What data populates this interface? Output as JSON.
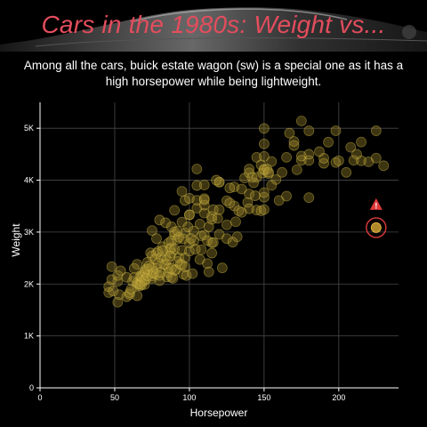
{
  "colors": {
    "background": "#000000",
    "title": "#e34d5d",
    "point_fill": "#a08a2e",
    "point_stroke": "#d8c24a",
    "highlight": "#e03a3a",
    "grid": "#4a4a4a"
  },
  "chart_data": {
    "type": "scatter",
    "title": "Cars in the 1980s: Weight vs...",
    "subtitle": "Among all the cars, buick estate wagon (sw) is a special one as it has a high horsepower while being lightweight.",
    "xlabel": "Horsepower",
    "ylabel": "Weight",
    "xlim": [
      0,
      240
    ],
    "ylim": [
      0,
      5500
    ],
    "x_ticks": [
      0,
      50,
      100,
      150,
      200
    ],
    "x_tick_labels": [
      "0",
      "50",
      "100",
      "150",
      "200"
    ],
    "y_ticks": [
      0,
      1000,
      2000,
      3000,
      4000,
      5000
    ],
    "y_tick_labels": [
      "0",
      "1K",
      "2K",
      "3K",
      "4K",
      "5K"
    ],
    "grid": true,
    "highlight": {
      "name": "buick estate wagon (sw)",
      "x": 225,
      "y": 3086,
      "icon": "warning-triangle-icon"
    },
    "points": [
      [
        46,
        1835
      ],
      [
        46,
        1950
      ],
      [
        48,
        2085
      ],
      [
        48,
        2335
      ],
      [
        49,
        1867
      ],
      [
        52,
        1649
      ],
      [
        52,
        2050
      ],
      [
        52,
        2164
      ],
      [
        53,
        1795
      ],
      [
        54,
        2254
      ],
      [
        58,
        1755
      ],
      [
        58,
        2130
      ],
      [
        60,
        1800
      ],
      [
        60,
        1834
      ],
      [
        61,
        1900
      ],
      [
        62,
        2050
      ],
      [
        63,
        2125
      ],
      [
        65,
        1773
      ],
      [
        65,
        1975
      ],
      [
        65,
        2019
      ],
      [
        65,
        2380
      ],
      [
        66,
        2000
      ],
      [
        67,
        1965
      ],
      [
        67,
        1995
      ],
      [
        67,
        2145
      ],
      [
        68,
        1985
      ],
      [
        68,
        2045
      ],
      [
        68,
        2135
      ],
      [
        68,
        2155
      ],
      [
        69,
        2189
      ],
      [
        70,
        1990
      ],
      [
        70,
        2070
      ],
      [
        70,
        2223
      ],
      [
        70,
        2245
      ],
      [
        71,
        2100
      ],
      [
        71,
        2288
      ],
      [
        72,
        2158
      ],
      [
        72,
        2290
      ],
      [
        74,
        2600
      ],
      [
        75,
        2108
      ],
      [
        75,
        2155
      ],
      [
        75,
        2320
      ],
      [
        75,
        2542
      ],
      [
        75,
        3030
      ],
      [
        76,
        2202
      ],
      [
        76,
        2226
      ],
      [
        78,
        2190
      ],
      [
        78,
        2300
      ],
      [
        78,
        2592
      ],
      [
        78,
        2875
      ],
      [
        79,
        2625
      ],
      [
        80,
        2065
      ],
      [
        80,
        2164
      ],
      [
        80,
        3233
      ],
      [
        81,
        2220
      ],
      [
        81,
        2511
      ],
      [
        82,
        2720
      ],
      [
        83,
        2370
      ],
      [
        84,
        2385
      ],
      [
        84,
        2525
      ],
      [
        85,
        2135
      ],
      [
        85,
        2464
      ],
      [
        86,
        2220
      ],
      [
        86,
        2790
      ],
      [
        86,
        2310
      ],
      [
        87,
        2672
      ],
      [
        88,
        2130
      ],
      [
        88,
        2600
      ],
      [
        88,
        2700
      ],
      [
        88,
        3102
      ],
      [
        88,
        2833
      ],
      [
        89,
        2110
      ],
      [
        90,
        2265
      ],
      [
        90,
        2670
      ],
      [
        90,
        2950
      ],
      [
        90,
        3000
      ],
      [
        90,
        3420
      ],
      [
        91,
        2279
      ],
      [
        92,
        2434
      ],
      [
        92,
        2865
      ],
      [
        93,
        2506
      ],
      [
        94,
        2379
      ],
      [
        95,
        2372
      ],
      [
        95,
        2648
      ],
      [
        95,
        3193
      ],
      [
        95,
        3785
      ],
      [
        96,
        2189
      ],
      [
        97,
        2330
      ],
      [
        97,
        2506
      ],
      [
        97,
        2984
      ],
      [
        97,
        3610
      ],
      [
        98,
        2164
      ],
      [
        100,
        2634
      ],
      [
        100,
        2789
      ],
      [
        100,
        3329
      ],
      [
        100,
        3336
      ],
      [
        100,
        3651
      ],
      [
        102,
        2200
      ],
      [
        103,
        2830
      ],
      [
        105,
        3459
      ],
      [
        105,
        3613
      ],
      [
        105,
        3897
      ],
      [
        105,
        4215
      ],
      [
        107,
        2472
      ],
      [
        107,
        3155
      ],
      [
        108,
        2930
      ],
      [
        110,
        2945
      ],
      [
        110,
        3365
      ],
      [
        110,
        3520
      ],
      [
        110,
        3620
      ],
      [
        110,
        3645
      ],
      [
        110,
        3907
      ],
      [
        112,
        2395
      ],
      [
        112,
        2835
      ],
      [
        113,
        2234
      ],
      [
        115,
        2595
      ],
      [
        115,
        2795
      ],
      [
        115,
        3245
      ],
      [
        115,
        3302
      ],
      [
        116,
        2800
      ],
      [
        116,
        3432
      ],
      [
        120,
        2957
      ],
      [
        120,
        3430
      ],
      [
        120,
        3962
      ],
      [
        120,
        3962
      ],
      [
        122,
        2310
      ],
      [
        125,
        2875
      ],
      [
        125,
        3140
      ],
      [
        125,
        3605
      ],
      [
        129,
        2807
      ],
      [
        130,
        3504
      ],
      [
        130,
        3870
      ],
      [
        132,
        2910
      ],
      [
        133,
        3410
      ],
      [
        135,
        3830
      ],
      [
        137,
        4042
      ],
      [
        139,
        3570
      ],
      [
        140,
        3449
      ],
      [
        140,
        3735
      ],
      [
        140,
        4141
      ],
      [
        140,
        4215
      ],
      [
        142,
        4054
      ],
      [
        145,
        3425
      ],
      [
        145,
        4055
      ],
      [
        145,
        4440
      ],
      [
        148,
        3410
      ],
      [
        148,
        4295
      ],
      [
        149,
        4135
      ],
      [
        150,
        3433
      ],
      [
        150,
        3672
      ],
      [
        150,
        3761
      ],
      [
        150,
        4199
      ],
      [
        150,
        4209
      ],
      [
        150,
        4457
      ],
      [
        150,
        4699
      ],
      [
        150,
        4997
      ],
      [
        152,
        4215
      ],
      [
        153,
        4129
      ],
      [
        153,
        4154
      ],
      [
        155,
        4360
      ],
      [
        158,
        4012
      ],
      [
        160,
        3609
      ],
      [
        165,
        3693
      ],
      [
        165,
        4440
      ],
      [
        167,
        4906
      ],
      [
        170,
        4668
      ],
      [
        170,
        4746
      ],
      [
        175,
        4385
      ],
      [
        175,
        4464
      ],
      [
        175,
        5140
      ],
      [
        180,
        3664
      ],
      [
        180,
        4380
      ],
      [
        180,
        4499
      ],
      [
        180,
        4951
      ],
      [
        190,
        4325
      ],
      [
        190,
        4422
      ],
      [
        193,
        4732
      ],
      [
        198,
        4341
      ],
      [
        198,
        4952
      ],
      [
        200,
        4376
      ],
      [
        208,
        4633
      ],
      [
        210,
        4382
      ],
      [
        215,
        4735
      ],
      [
        215,
        4374
      ],
      [
        220,
        4354
      ],
      [
        225,
        4425
      ],
      [
        225,
        4951
      ],
      [
        230,
        4278
      ],
      [
        118,
        4000
      ],
      [
        127,
        3560
      ],
      [
        63,
        2300
      ],
      [
        72,
        2420
      ],
      [
        84,
        3180
      ],
      [
        99,
        3100
      ],
      [
        104,
        2670
      ],
      [
        108,
        2660
      ],
      [
        119,
        3264
      ],
      [
        127,
        3850
      ],
      [
        135,
        3380
      ],
      [
        143,
        3950
      ],
      [
        155,
        3900
      ],
      [
        162,
        4150
      ],
      [
        172,
        4200
      ],
      [
        187,
        4550
      ],
      [
        205,
        4150
      ],
      [
        212,
        4500
      ],
      [
        77,
        2480
      ],
      [
        93,
        2900
      ],
      [
        101,
        2880
      ],
      [
        113,
        3100
      ],
      [
        82,
        2640
      ],
      [
        87,
        2540
      ],
      [
        92,
        3020
      ],
      [
        103,
        3020
      ],
      [
        131,
        3200
      ],
      [
        144,
        3700
      ],
      [
        79,
        2400
      ],
      [
        73,
        2350
      ],
      [
        88,
        2300
      ],
      [
        96,
        2870
      ]
    ]
  }
}
